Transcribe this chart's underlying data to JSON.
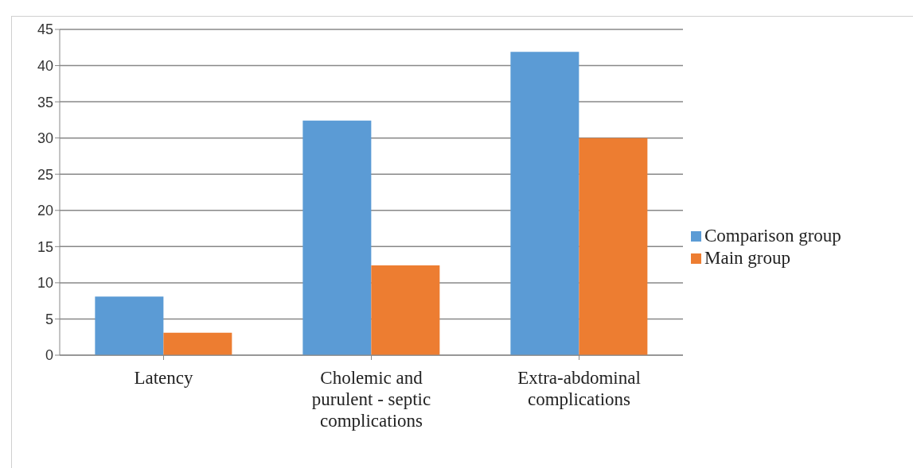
{
  "chart_data": {
    "type": "bar",
    "categories": [
      "Latency",
      "Cholemic and purulent - septic complications",
      "Extra-abdominal complications"
    ],
    "series": [
      {
        "name": "Comparison group",
        "color": "#5b9bd5",
        "values": [
          8.1,
          32.4,
          41.9
        ]
      },
      {
        "name": "Main group",
        "color": "#ed7d31",
        "values": [
          3.1,
          12.4,
          30.0
        ]
      }
    ],
    "ylim": [
      0,
      45
    ],
    "yticks": [
      0,
      5,
      10,
      15,
      20,
      25,
      30,
      35,
      40,
      45
    ],
    "grid": "y",
    "legend": "right"
  }
}
